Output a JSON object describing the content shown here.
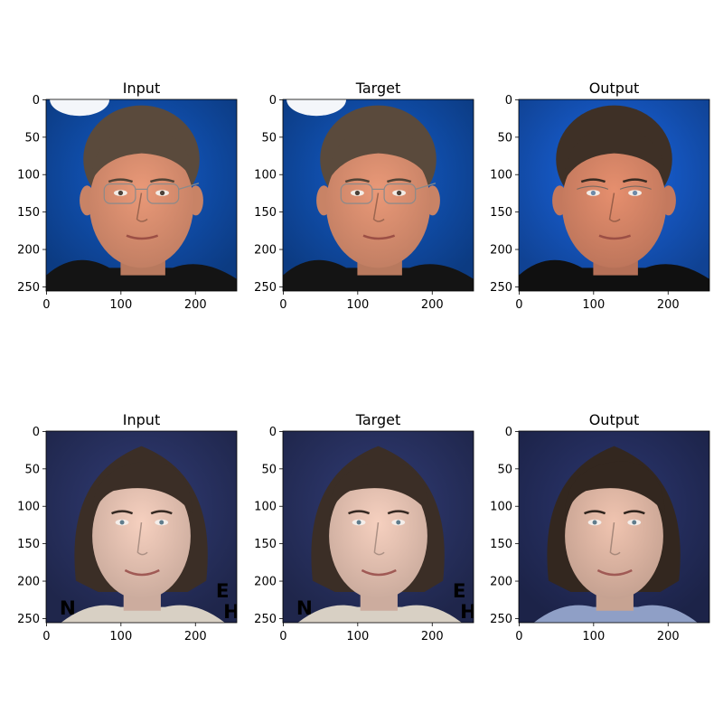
{
  "figure": {
    "background": "#ffffff",
    "axis_ticks": [
      0,
      100,
      200
    ],
    "y_ticks": [
      0,
      50,
      100,
      150,
      200,
      250
    ],
    "image_extent": [
      0,
      256
    ]
  },
  "rows": [
    {
      "panels": [
        {
          "title": "Input",
          "image": {
            "subject": "middle-aged man with wire-rim glasses and short brown hair",
            "background_color": "#0f4aa3",
            "skin_color": "#d98e6f",
            "hair_color": "#5a4a3c",
            "clothing_color": "#141414"
          }
        },
        {
          "title": "Target",
          "image": {
            "subject": "middle-aged man with wire-rim glasses and short brown hair",
            "background_color": "#0f4aa3",
            "skin_color": "#d98e6f",
            "hair_color": "#5a4a3c",
            "clothing_color": "#141414"
          }
        },
        {
          "title": "Output",
          "image": {
            "subject": "reconstructed face of man with glasses, smoother texture",
            "background_color": "#1452b8",
            "skin_color": "#d58466",
            "hair_color": "#3e3026",
            "clothing_color": "#101010"
          }
        }
      ]
    },
    {
      "panels": [
        {
          "title": "Input",
          "image": {
            "subject": "man with shoulder-length brown hair smiling, lettering on backdrop",
            "background_color": "#27305e",
            "skin_color": "#e8c4b4",
            "hair_color": "#3b2e26",
            "clothing_color": "#d8d0c4",
            "backdrop_letters": [
              "N",
              "E",
              "H"
            ]
          }
        },
        {
          "title": "Target",
          "image": {
            "subject": "man with shoulder-length brown hair smiling, lettering on backdrop",
            "background_color": "#27305e",
            "skin_color": "#e8c4b4",
            "hair_color": "#3b2e26",
            "clothing_color": "#d8d0c4",
            "backdrop_letters": [
              "N",
              "E",
              "H"
            ]
          }
        },
        {
          "title": "Output",
          "image": {
            "subject": "reconstructed face of man with shoulder-length hair, smoother texture",
            "background_color": "#232c5a",
            "skin_color": "#e2b9a6",
            "hair_color": "#33271f",
            "clothing_color": "#8f9fc6",
            "backdrop_letters": []
          }
        }
      ]
    }
  ]
}
